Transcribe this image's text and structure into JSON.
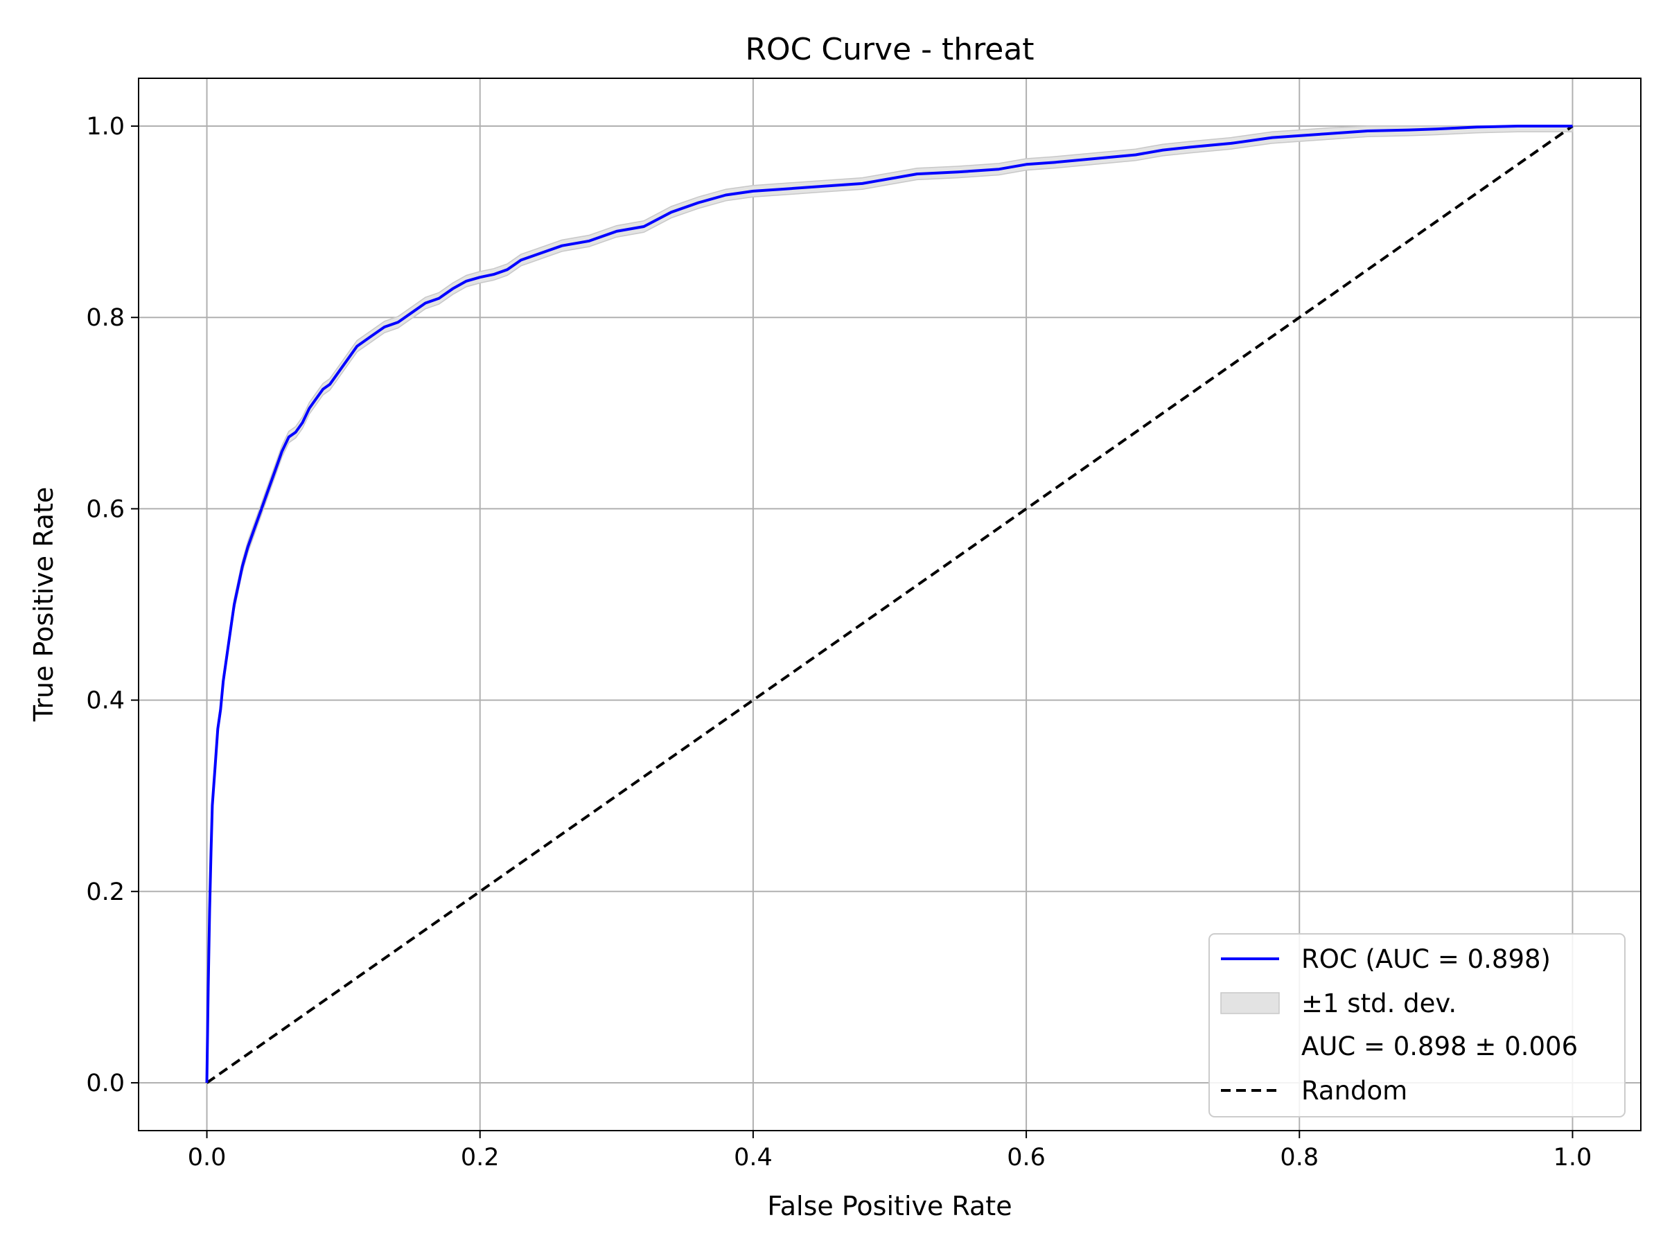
{
  "chart_data": {
    "type": "line",
    "title": "ROC Curve - threat",
    "xlabel": "False Positive Rate",
    "ylabel": "True Positive Rate",
    "xlim": [
      -0.05,
      1.05
    ],
    "ylim": [
      -0.05,
      1.05
    ],
    "xticks": [
      0.0,
      0.2,
      0.4,
      0.6,
      0.8,
      1.0
    ],
    "xtick_labels": [
      "0.0",
      "0.2",
      "0.4",
      "0.6",
      "0.8",
      "1.0"
    ],
    "yticks": [
      0.0,
      0.2,
      0.4,
      0.6,
      0.8,
      1.0
    ],
    "ytick_labels": [
      "0.0",
      "0.2",
      "0.4",
      "0.6",
      "0.8",
      "1.0"
    ],
    "grid": true,
    "legend_position": "lower-right",
    "series": [
      {
        "name": "ROC (AUC = 0.898)",
        "kind": "line",
        "color": "#0000ff",
        "x": [
          0.0,
          0.001,
          0.002,
          0.003,
          0.004,
          0.006,
          0.008,
          0.01,
          0.012,
          0.015,
          0.018,
          0.02,
          0.023,
          0.026,
          0.03,
          0.035,
          0.04,
          0.045,
          0.05,
          0.055,
          0.06,
          0.065,
          0.07,
          0.075,
          0.08,
          0.085,
          0.09,
          0.095,
          0.1,
          0.11,
          0.12,
          0.13,
          0.14,
          0.15,
          0.16,
          0.17,
          0.18,
          0.19,
          0.2,
          0.21,
          0.22,
          0.23,
          0.24,
          0.26,
          0.28,
          0.3,
          0.32,
          0.34,
          0.36,
          0.38,
          0.4,
          0.42,
          0.45,
          0.48,
          0.5,
          0.52,
          0.55,
          0.58,
          0.6,
          0.62,
          0.65,
          0.68,
          0.7,
          0.72,
          0.75,
          0.78,
          0.8,
          0.82,
          0.85,
          0.88,
          0.9,
          0.93,
          0.96,
          0.98,
          1.0
        ],
        "y": [
          0.0,
          0.1,
          0.18,
          0.24,
          0.29,
          0.33,
          0.37,
          0.39,
          0.42,
          0.45,
          0.48,
          0.5,
          0.52,
          0.54,
          0.56,
          0.58,
          0.6,
          0.62,
          0.64,
          0.66,
          0.675,
          0.68,
          0.69,
          0.705,
          0.715,
          0.725,
          0.73,
          0.74,
          0.75,
          0.77,
          0.78,
          0.79,
          0.795,
          0.805,
          0.815,
          0.82,
          0.83,
          0.838,
          0.842,
          0.845,
          0.85,
          0.86,
          0.865,
          0.875,
          0.88,
          0.89,
          0.895,
          0.91,
          0.92,
          0.928,
          0.932,
          0.934,
          0.937,
          0.94,
          0.945,
          0.95,
          0.952,
          0.955,
          0.96,
          0.962,
          0.966,
          0.97,
          0.975,
          0.978,
          0.982,
          0.988,
          0.99,
          0.992,
          0.995,
          0.996,
          0.997,
          0.999,
          1.0,
          1.0,
          1.0
        ]
      },
      {
        "name": "±1 std. dev.",
        "kind": "band",
        "color": "#e3e3e3",
        "stroke": "#c8c8c8",
        "spread": 0.006
      },
      {
        "name": "Random",
        "kind": "dashed-line",
        "color": "#000000",
        "x": [
          0.0,
          1.0
        ],
        "y": [
          0.0,
          1.0
        ]
      }
    ],
    "legend": [
      {
        "label": "ROC (AUC = 0.898)",
        "marker": "line",
        "color": "#0000ff"
      },
      {
        "label": "±1 std. dev.",
        "marker": "patch",
        "color": "#e3e3e3"
      },
      {
        "label": "AUC = 0.898 ± 0.006",
        "marker": "none",
        "color": ""
      },
      {
        "label": "Random",
        "marker": "dashed",
        "color": "#000000"
      }
    ]
  }
}
